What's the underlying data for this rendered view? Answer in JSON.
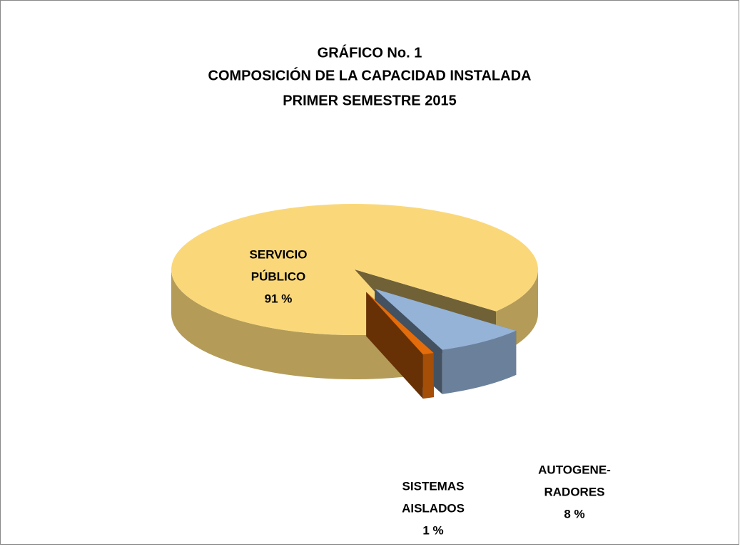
{
  "chart_data": {
    "type": "pie3d",
    "title": [
      "GRÁFICO No. 1",
      "COMPOSICIÓN  DE  LA  CAPACIDAD  INSTALADA",
      "PRIMER  SEMESTRE  2015"
    ],
    "categories": [
      [
        "SERVICIO",
        "PÚBLICO"
      ],
      [
        "AUTOGENE-",
        "RADORES"
      ],
      [
        "SISTEMAS",
        "AISLADOS"
      ]
    ],
    "values": [
      91,
      8,
      1
    ],
    "value_labels": [
      "91 %",
      "8 %",
      "1 %"
    ],
    "colors": [
      "#fad87a",
      "#95b3d7",
      "#e46c0a"
    ]
  }
}
